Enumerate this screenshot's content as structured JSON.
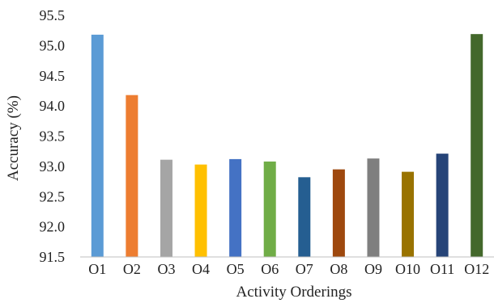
{
  "chart_data": {
    "type": "bar",
    "title": "",
    "xlabel": "Activity Orderings",
    "ylabel": "Accuracy (%)",
    "ylim": [
      91.5,
      95.5
    ],
    "yticks": [
      "91.5",
      "92.0",
      "92.5",
      "93.0",
      "93.5",
      "94.0",
      "94.5",
      "95.0",
      "95.5"
    ],
    "yticks_values": [
      91.5,
      92.0,
      92.5,
      93.0,
      93.5,
      94.0,
      94.5,
      95.0,
      95.5
    ],
    "grid": false,
    "legend": "none",
    "categories": [
      "O1",
      "O2",
      "O3",
      "O4",
      "O5",
      "O6",
      "O7",
      "O8",
      "O9",
      "O10",
      "O11",
      "O12"
    ],
    "values": [
      95.18,
      94.18,
      93.11,
      93.03,
      93.12,
      93.08,
      92.82,
      92.95,
      93.13,
      92.91,
      93.21,
      95.19
    ],
    "colors": [
      "#5b9bd5",
      "#ed7d31",
      "#a5a5a5",
      "#ffc000",
      "#4472c4",
      "#70ad47",
      "#255e91",
      "#9e480e",
      "#7f7f7f",
      "#997300",
      "#264478",
      "#43682b"
    ]
  }
}
